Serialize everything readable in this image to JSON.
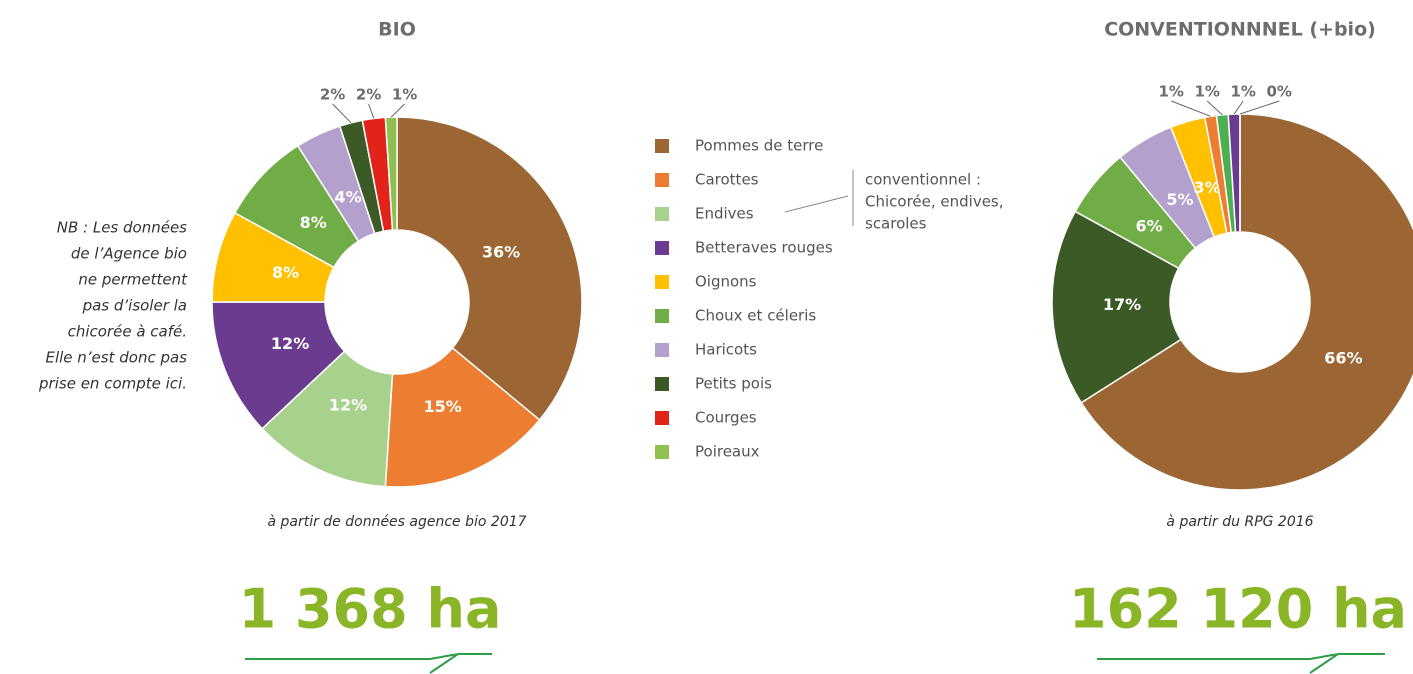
{
  "chart_data": [
    {
      "type": "pie",
      "title": "BIO",
      "categories": [
        "Pommes de terre",
        "Carottes",
        "Endives",
        "Betteraves rouges",
        "Oignons",
        "Choux et céleris",
        "Haricots",
        "Petits pois",
        "Courges",
        "Poireaux"
      ],
      "values": [
        36,
        15,
        12,
        12,
        8,
        8,
        4,
        2,
        2,
        1
      ],
      "value_labels": [
        "36%",
        "15%",
        "12%",
        "12%",
        "8%",
        "8%",
        "4%",
        "2%",
        "2%",
        "1%"
      ],
      "colors": [
        "#9b6633",
        "#ed7d31",
        "#a9d18e",
        "#6a3b8f",
        "#ffc000",
        "#70ad47",
        "#b4a0cc",
        "#3b5a26",
        "#e2231a",
        "#92c050"
      ],
      "source": "à partir de données agence bio 2017",
      "total": "1 368 ha"
    },
    {
      "type": "pie",
      "title": "CONVENTIONNNEL (+bio)",
      "categories": [
        "Pommes de terre",
        "Petits pois",
        "Choux et céleris",
        "Haricots",
        "Oignons",
        "Carottes",
        "Poireaux",
        "Betteraves rouges",
        "Courges"
      ],
      "values": [
        66,
        17,
        6,
        5,
        3,
        1,
        1,
        1,
        0
      ],
      "value_labels": [
        "66%",
        "17%",
        "6%",
        "5%",
        "3%",
        "1%",
        "1%",
        "1%",
        "0%"
      ],
      "colors": [
        "#9b6633",
        "#3b5a26",
        "#70ad47",
        "#b4a0cc",
        "#ffc000",
        "#ed7d31",
        "#4caf50",
        "#6a3b8f",
        "#e2231a"
      ],
      "source": "à partir du RPG 2016",
      "total": "162 120 ha"
    }
  ],
  "legend_note": [
    "conventionnel :",
    "Chicorée, endives,",
    "scaroles"
  ],
  "note": [
    "NB : Les données",
    "de l’Agence bio",
    "ne permettent",
    "pas d’isoler la",
    "chicorée à café.",
    "Elle n’est donc pas",
    "prise en compte ici."
  ]
}
